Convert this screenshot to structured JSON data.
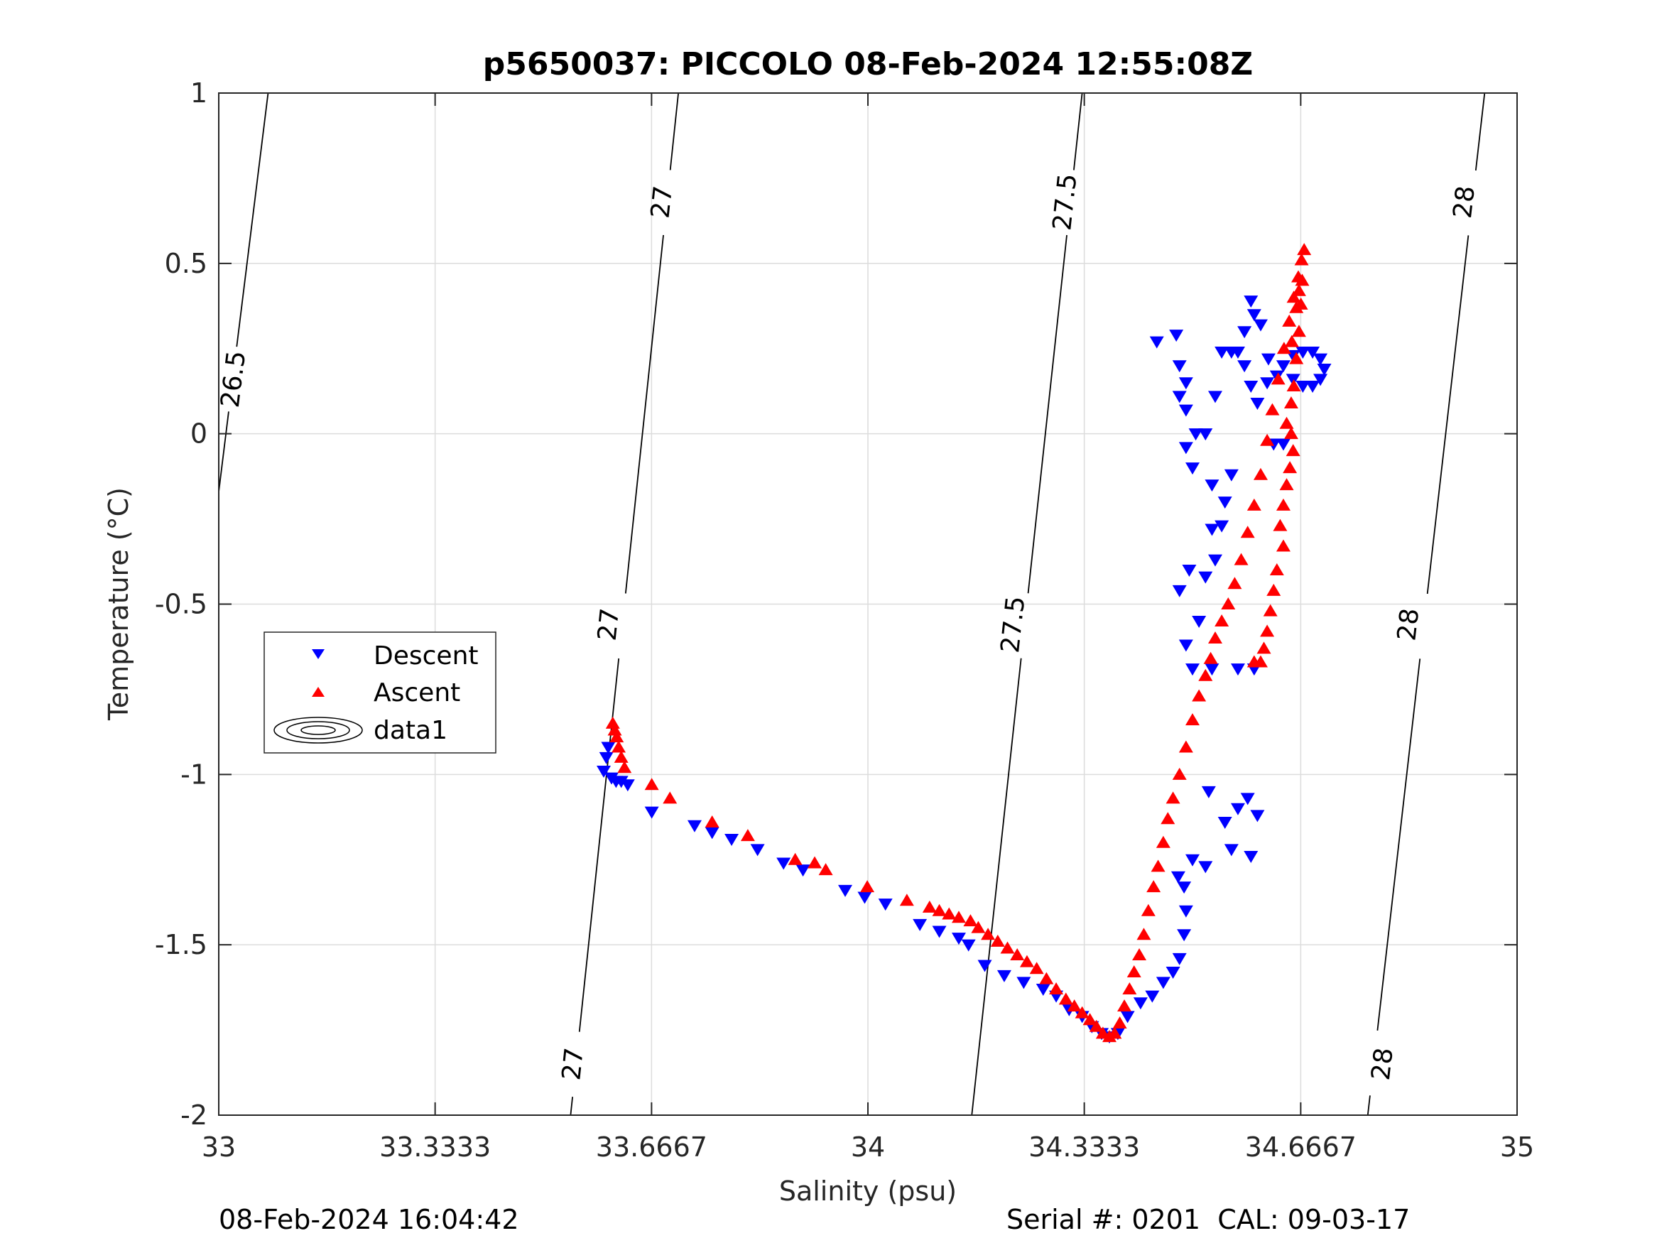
{
  "chart_data": {
    "type": "scatter",
    "title": "p5650037: PICCOLO 08-Feb-2024 12:55:08Z",
    "xlabel": "Salinity (psu)",
    "ylabel": "Temperature (°C)",
    "xlim": [
      33,
      35
    ],
    "ylim": [
      -2,
      1
    ],
    "x_ticks": [
      33,
      33.3333,
      33.6667,
      34,
      34.3333,
      34.6667,
      35
    ],
    "x_tick_labels": [
      "33",
      "33.3333",
      "33.6667",
      "34",
      "34.3333",
      "34.6667",
      "35"
    ],
    "y_ticks": [
      -2,
      -1.5,
      -1,
      -0.5,
      0,
      0.5,
      1
    ],
    "y_tick_labels": [
      "-2",
      "-1.5",
      "-1",
      "-0.5",
      "0",
      "0.5",
      "1"
    ],
    "grid": true,
    "legend_position": "left-middle",
    "legend": [
      "Descent",
      "Ascent",
      "data1"
    ],
    "colors": {
      "descent": "#0000ff",
      "ascent": "#ff0000",
      "contour": "#000000",
      "grid": "#dcdcdc",
      "axis": "#262626"
    },
    "density_contours": {
      "name": "data1",
      "levels": [
        26.5,
        27,
        27.5,
        28
      ],
      "lines": [
        {
          "level": 26.5,
          "points": [
            [
              33.0,
              -0.17
            ],
            [
              33.076,
              1.0
            ]
          ],
          "labels": [
            [
              33.023,
              0.16
            ]
          ]
        },
        {
          "level": 27,
          "points": [
            [
              33.542,
              -2.0
            ],
            [
              33.708,
              1.0
            ]
          ],
          "labels": [
            [
              33.546,
              -1.85
            ],
            [
              33.601,
              -0.56
            ],
            [
              33.683,
              0.68
            ]
          ]
        },
        {
          "level": 27.5,
          "points": [
            [
              34.16,
              -2.0
            ],
            [
              34.33,
              1.0
            ]
          ],
          "labels": [
            [
              34.224,
              -0.56
            ],
            [
              34.304,
              0.68
            ]
          ]
        },
        {
          "level": 28,
          "points": [
            [
              34.77,
              -2.0
            ],
            [
              34.95,
              1.0
            ]
          ],
          "labels": [
            [
              34.793,
              -1.85
            ],
            [
              34.833,
              -0.56
            ],
            [
              34.919,
              0.68
            ]
          ]
        }
      ]
    },
    "series": [
      {
        "name": "Descent",
        "marker": "triangle-down",
        "color": "#0000ff",
        "points": [
          [
            33.593,
            -0.99
          ],
          [
            33.597,
            -0.95
          ],
          [
            33.6,
            -0.92
          ],
          [
            33.605,
            -1.01
          ],
          [
            33.612,
            -1.02
          ],
          [
            33.62,
            -1.02
          ],
          [
            33.63,
            -1.03
          ],
          [
            33.667,
            -1.11
          ],
          [
            33.733,
            -1.15
          ],
          [
            33.76,
            -1.17
          ],
          [
            33.79,
            -1.19
          ],
          [
            33.83,
            -1.22
          ],
          [
            33.87,
            -1.26
          ],
          [
            33.9,
            -1.28
          ],
          [
            33.965,
            -1.34
          ],
          [
            33.995,
            -1.36
          ],
          [
            34.027,
            -1.38
          ],
          [
            34.08,
            -1.44
          ],
          [
            34.11,
            -1.46
          ],
          [
            34.14,
            -1.48
          ],
          [
            34.155,
            -1.5
          ],
          [
            34.18,
            -1.56
          ],
          [
            34.21,
            -1.59
          ],
          [
            34.24,
            -1.61
          ],
          [
            34.27,
            -1.63
          ],
          [
            34.29,
            -1.65
          ],
          [
            34.31,
            -1.69
          ],
          [
            34.33,
            -1.71
          ],
          [
            34.345,
            -1.74
          ],
          [
            34.36,
            -1.76
          ],
          [
            34.372,
            -1.77
          ],
          [
            34.385,
            -1.76
          ],
          [
            34.4,
            -1.71
          ],
          [
            34.42,
            -1.67
          ],
          [
            34.438,
            -1.65
          ],
          [
            34.455,
            -1.61
          ],
          [
            34.47,
            -1.58
          ],
          [
            34.48,
            -1.54
          ],
          [
            34.487,
            -1.47
          ],
          [
            34.49,
            -1.4
          ],
          [
            34.487,
            -1.33
          ],
          [
            34.478,
            -1.3
          ],
          [
            34.5,
            -1.25
          ],
          [
            34.52,
            -1.27
          ],
          [
            34.525,
            -1.05
          ],
          [
            34.55,
            -1.14
          ],
          [
            34.57,
            -1.1
          ],
          [
            34.585,
            -1.07
          ],
          [
            34.6,
            -1.12
          ],
          [
            34.59,
            -1.24
          ],
          [
            34.56,
            -1.22
          ],
          [
            34.5,
            -0.69
          ],
          [
            34.53,
            -0.69
          ],
          [
            34.57,
            -0.69
          ],
          [
            34.595,
            -0.69
          ],
          [
            34.49,
            -0.62
          ],
          [
            34.51,
            -0.55
          ],
          [
            34.48,
            -0.46
          ],
          [
            34.495,
            -0.4
          ],
          [
            34.52,
            -0.42
          ],
          [
            34.535,
            -0.37
          ],
          [
            34.53,
            -0.28
          ],
          [
            34.545,
            -0.27
          ],
          [
            34.55,
            -0.2
          ],
          [
            34.53,
            -0.15
          ],
          [
            34.56,
            -0.12
          ],
          [
            34.5,
            -0.1
          ],
          [
            34.49,
            -0.04
          ],
          [
            34.505,
            0.0
          ],
          [
            34.52,
            0.0
          ],
          [
            34.625,
            -0.03
          ],
          [
            34.64,
            -0.03
          ],
          [
            34.615,
            0.15
          ],
          [
            34.63,
            0.17
          ],
          [
            34.64,
            0.2
          ],
          [
            34.655,
            0.23
          ],
          [
            34.67,
            0.24
          ],
          [
            34.685,
            0.24
          ],
          [
            34.697,
            0.22
          ],
          [
            34.703,
            0.19
          ],
          [
            34.697,
            0.16
          ],
          [
            34.685,
            0.14
          ],
          [
            34.67,
            0.14
          ],
          [
            34.655,
            0.16
          ],
          [
            34.6,
            0.09
          ],
          [
            34.59,
            0.14
          ],
          [
            34.58,
            0.2
          ],
          [
            34.57,
            0.24
          ],
          [
            34.56,
            0.24
          ],
          [
            34.545,
            0.24
          ],
          [
            34.58,
            0.3
          ],
          [
            34.595,
            0.35
          ],
          [
            34.59,
            0.39
          ],
          [
            34.445,
            0.27
          ],
          [
            34.475,
            0.29
          ],
          [
            34.48,
            0.2
          ],
          [
            34.49,
            0.15
          ],
          [
            34.48,
            0.11
          ],
          [
            34.49,
            0.07
          ],
          [
            34.535,
            0.11
          ],
          [
            34.605,
            0.32
          ],
          [
            34.617,
            0.22
          ]
        ]
      },
      {
        "name": "Ascent",
        "marker": "triangle-up",
        "color": "#ff0000",
        "points": [
          [
            33.607,
            -0.85
          ],
          [
            33.61,
            -0.87
          ],
          [
            33.613,
            -0.89
          ],
          [
            33.616,
            -0.92
          ],
          [
            33.62,
            -0.95
          ],
          [
            33.625,
            -0.98
          ],
          [
            33.667,
            -1.03
          ],
          [
            33.695,
            -1.07
          ],
          [
            33.76,
            -1.14
          ],
          [
            33.815,
            -1.18
          ],
          [
            33.888,
            -1.25
          ],
          [
            33.918,
            -1.26
          ],
          [
            33.935,
            -1.28
          ],
          [
            33.999,
            -1.33
          ],
          [
            34.06,
            -1.37
          ],
          [
            34.095,
            -1.39
          ],
          [
            34.11,
            -1.4
          ],
          [
            34.125,
            -1.41
          ],
          [
            34.14,
            -1.42
          ],
          [
            34.158,
            -1.43
          ],
          [
            34.17,
            -1.45
          ],
          [
            34.185,
            -1.47
          ],
          [
            34.2,
            -1.49
          ],
          [
            34.215,
            -1.51
          ],
          [
            34.23,
            -1.53
          ],
          [
            34.245,
            -1.55
          ],
          [
            34.26,
            -1.57
          ],
          [
            34.275,
            -1.6
          ],
          [
            34.29,
            -1.63
          ],
          [
            34.305,
            -1.66
          ],
          [
            34.318,
            -1.68
          ],
          [
            34.33,
            -1.7
          ],
          [
            34.342,
            -1.72
          ],
          [
            34.352,
            -1.74
          ],
          [
            34.362,
            -1.76
          ],
          [
            34.372,
            -1.77
          ],
          [
            34.38,
            -1.76
          ],
          [
            34.388,
            -1.73
          ],
          [
            34.395,
            -1.68
          ],
          [
            34.403,
            -1.63
          ],
          [
            34.41,
            -1.58
          ],
          [
            34.418,
            -1.53
          ],
          [
            34.425,
            -1.47
          ],
          [
            34.432,
            -1.4
          ],
          [
            34.44,
            -1.33
          ],
          [
            34.447,
            -1.27
          ],
          [
            34.455,
            -1.2
          ],
          [
            34.462,
            -1.13
          ],
          [
            34.47,
            -1.07
          ],
          [
            34.48,
            -1.0
          ],
          [
            34.49,
            -0.92
          ],
          [
            34.5,
            -0.84
          ],
          [
            34.51,
            -0.77
          ],
          [
            34.52,
            -0.71
          ],
          [
            34.528,
            -0.66
          ],
          [
            34.535,
            -0.6
          ],
          [
            34.545,
            -0.55
          ],
          [
            34.555,
            -0.5
          ],
          [
            34.565,
            -0.44
          ],
          [
            34.575,
            -0.37
          ],
          [
            34.585,
            -0.29
          ],
          [
            34.595,
            -0.21
          ],
          [
            34.605,
            -0.12
          ],
          [
            34.615,
            -0.02
          ],
          [
            34.623,
            0.07
          ],
          [
            34.632,
            0.16
          ],
          [
            34.641,
            0.25
          ],
          [
            34.649,
            0.33
          ],
          [
            34.656,
            0.4
          ],
          [
            34.663,
            0.46
          ],
          [
            34.668,
            0.51
          ],
          [
            34.672,
            0.54
          ],
          [
            34.669,
            0.45
          ],
          [
            34.667,
            0.38
          ],
          [
            34.664,
            0.3
          ],
          [
            34.66,
            0.22
          ],
          [
            34.656,
            0.14
          ],
          [
            34.652,
            0.09
          ],
          [
            34.645,
            0.03
          ],
          [
            34.652,
            0.0
          ],
          [
            34.655,
            -0.05
          ],
          [
            34.65,
            -0.1
          ],
          [
            34.645,
            -0.15
          ],
          [
            34.64,
            -0.21
          ],
          [
            34.635,
            -0.27
          ],
          [
            34.64,
            -0.33
          ],
          [
            34.63,
            -0.4
          ],
          [
            34.625,
            -0.46
          ],
          [
            34.62,
            -0.52
          ],
          [
            34.615,
            -0.58
          ],
          [
            34.61,
            -0.63
          ],
          [
            34.605,
            -0.67
          ],
          [
            34.595,
            -0.67
          ],
          [
            34.653,
            0.27
          ],
          [
            34.66,
            0.37
          ],
          [
            34.664,
            0.42
          ]
        ]
      }
    ]
  },
  "footer": {
    "left": "08-Feb-2024 16:04:42",
    "right": "Serial #: 0201  CAL: 09-03-17"
  }
}
